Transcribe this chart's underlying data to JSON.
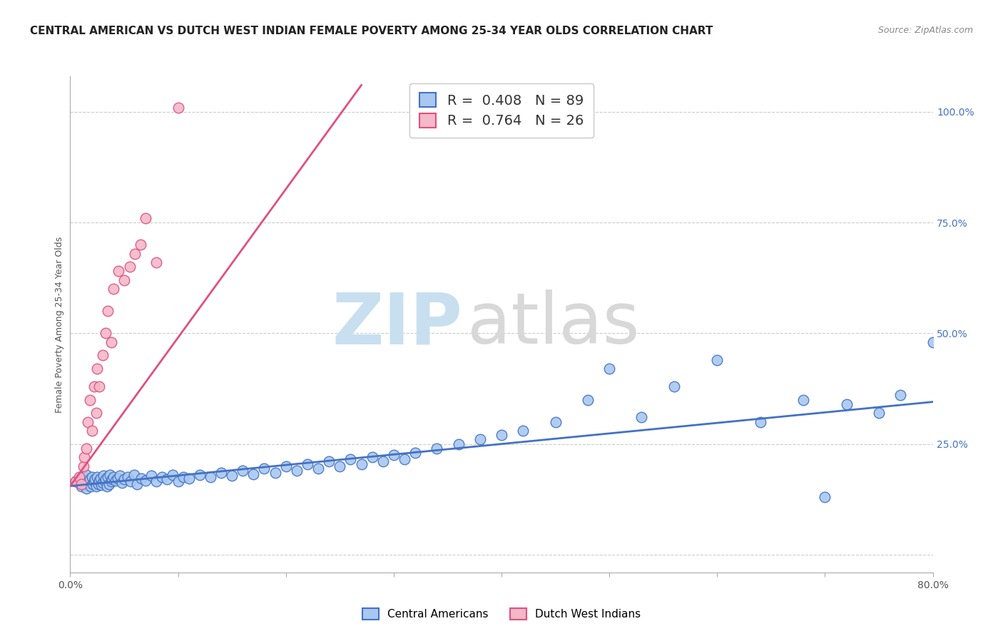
{
  "title": "CENTRAL AMERICAN VS DUTCH WEST INDIAN FEMALE POVERTY AMONG 25-34 YEAR OLDS CORRELATION CHART",
  "source": "Source: ZipAtlas.com",
  "ylabel": "Female Poverty Among 25-34 Year Olds",
  "xlim": [
    0.0,
    0.8
  ],
  "ylim": [
    -0.04,
    1.08
  ],
  "xticks": [
    0.0,
    0.1,
    0.2,
    0.3,
    0.4,
    0.5,
    0.6,
    0.7,
    0.8
  ],
  "xticklabels": [
    "0.0%",
    "",
    "",
    "",
    "",
    "",
    "",
    "",
    "80.0%"
  ],
  "ytick_positions": [
    0.0,
    0.25,
    0.5,
    0.75,
    1.0
  ],
  "ytick_labels": [
    "",
    "25.0%",
    "50.0%",
    "75.0%",
    "100.0%"
  ],
  "blue_R": 0.408,
  "blue_N": 89,
  "pink_R": 0.764,
  "pink_N": 26,
  "blue_color": "#a8c8f0",
  "pink_color": "#f4b8c8",
  "blue_line_color": "#4472c4",
  "pink_line_color": "#e05080",
  "background_color": "#ffffff",
  "grid_color": "#cccccc",
  "watermark_blue": "ZIP",
  "watermark_gray": "atlas",
  "watermark_blue_color": "#c8dff0",
  "watermark_gray_color": "#d8d8d8",
  "title_fontsize": 11,
  "axis_label_fontsize": 9,
  "tick_fontsize": 10,
  "legend_fontsize": 14,
  "blue_x": [
    0.005,
    0.008,
    0.01,
    0.012,
    0.013,
    0.015,
    0.015,
    0.017,
    0.018,
    0.019,
    0.02,
    0.021,
    0.022,
    0.023,
    0.024,
    0.025,
    0.026,
    0.027,
    0.028,
    0.029,
    0.03,
    0.031,
    0.032,
    0.033,
    0.034,
    0.035,
    0.036,
    0.037,
    0.038,
    0.039,
    0.04,
    0.042,
    0.044,
    0.046,
    0.048,
    0.05,
    0.053,
    0.056,
    0.059,
    0.062,
    0.066,
    0.07,
    0.075,
    0.08,
    0.085,
    0.09,
    0.095,
    0.1,
    0.105,
    0.11,
    0.12,
    0.13,
    0.14,
    0.15,
    0.16,
    0.17,
    0.18,
    0.19,
    0.2,
    0.21,
    0.22,
    0.23,
    0.24,
    0.25,
    0.26,
    0.27,
    0.28,
    0.29,
    0.3,
    0.31,
    0.32,
    0.34,
    0.36,
    0.38,
    0.4,
    0.42,
    0.45,
    0.48,
    0.5,
    0.53,
    0.56,
    0.6,
    0.64,
    0.68,
    0.7,
    0.72,
    0.75,
    0.77,
    0.8
  ],
  "blue_y": [
    0.165,
    0.17,
    0.155,
    0.175,
    0.16,
    0.18,
    0.15,
    0.165,
    0.17,
    0.155,
    0.175,
    0.16,
    0.165,
    0.17,
    0.155,
    0.175,
    0.16,
    0.168,
    0.172,
    0.158,
    0.162,
    0.178,
    0.165,
    0.17,
    0.155,
    0.175,
    0.16,
    0.18,
    0.165,
    0.17,
    0.175,
    0.168,
    0.172,
    0.178,
    0.162,
    0.17,
    0.175,
    0.165,
    0.18,
    0.16,
    0.172,
    0.168,
    0.178,
    0.165,
    0.175,
    0.17,
    0.18,
    0.165,
    0.175,
    0.172,
    0.18,
    0.175,
    0.185,
    0.178,
    0.19,
    0.182,
    0.195,
    0.185,
    0.2,
    0.19,
    0.205,
    0.195,
    0.21,
    0.2,
    0.215,
    0.205,
    0.22,
    0.21,
    0.225,
    0.215,
    0.23,
    0.24,
    0.25,
    0.26,
    0.27,
    0.28,
    0.3,
    0.35,
    0.42,
    0.31,
    0.38,
    0.44,
    0.3,
    0.35,
    0.13,
    0.34,
    0.32,
    0.36,
    0.48
  ],
  "pink_x": [
    0.005,
    0.008,
    0.01,
    0.012,
    0.013,
    0.015,
    0.016,
    0.018,
    0.02,
    0.022,
    0.024,
    0.025,
    0.027,
    0.03,
    0.033,
    0.035,
    0.038,
    0.04,
    0.045,
    0.05,
    0.055,
    0.06,
    0.065,
    0.07,
    0.08,
    0.1
  ],
  "pink_y": [
    0.165,
    0.175,
    0.16,
    0.2,
    0.22,
    0.24,
    0.3,
    0.35,
    0.28,
    0.38,
    0.32,
    0.42,
    0.38,
    0.45,
    0.5,
    0.55,
    0.48,
    0.6,
    0.64,
    0.62,
    0.65,
    0.68,
    0.7,
    0.76,
    0.66,
    1.01
  ]
}
